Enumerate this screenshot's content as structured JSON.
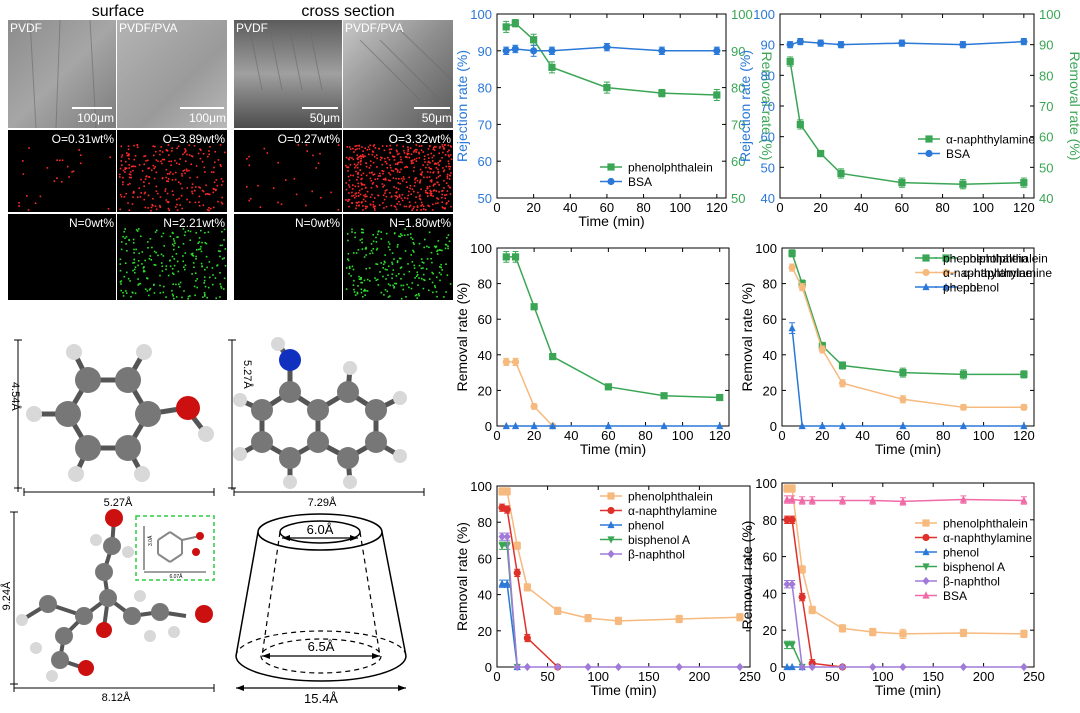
{
  "sem": {
    "col_titles": [
      "surface",
      "cross section"
    ],
    "panel_labels": [
      "PVDF",
      "PVDF/PVA",
      "PVDF",
      "PVDF/PVA"
    ],
    "scale_bars": [
      "100μm",
      "100μm",
      "50μm",
      "50μm"
    ],
    "oxygen": [
      "O=0.31wt%",
      "O=3.89wt%",
      "O=0.27wt%",
      "O=3.32wt%"
    ],
    "nitrogen": [
      "N=0wt%",
      "N=2.21wt%",
      "N=0wt%",
      "N=1.80wt%"
    ],
    "colors": {
      "oxygen_dots": "#ff2a2a",
      "nitrogen_dots": "#2ee02e",
      "sem_gray": "#9a9a9a"
    }
  },
  "molecules": {
    "phenol": {
      "height": "4.54Å",
      "width": "5.27Å"
    },
    "naphthylamine": {
      "height": "5.27Å",
      "width": "7.29Å"
    },
    "phenolphthalein": {
      "height": "9.24Å",
      "width": "8.12Å",
      "inset_a": "6.07Å",
      "inset_b": "3.0Å"
    },
    "cyclodextrin": {
      "top": "6.0Å",
      "bottom": "6.5Å",
      "width": "15.4Å"
    },
    "colors": {
      "carbon": "#7a7a7a",
      "hydrogen": "#d8d8d8",
      "oxygen": "#d01010",
      "nitrogen": "#1030c0"
    }
  },
  "chart_data": [
    {
      "type": "line",
      "xlabel": "Time (min)",
      "ylabel": "Rejection rate (%)",
      "ylabel_right": "Removal rate (%)",
      "xlim": [
        0,
        125
      ],
      "xticks": [
        0,
        20,
        40,
        60,
        80,
        100,
        120
      ],
      "ylim": [
        50,
        100
      ],
      "yticks": [
        50,
        60,
        70,
        80,
        90,
        100
      ],
      "ylim_right": [
        50,
        100
      ],
      "yticks_right": [
        50,
        60,
        70,
        80,
        90,
        100
      ],
      "legend": "bottom-right",
      "series": [
        {
          "name": "phenolphthalein",
          "axis": "right",
          "color": "#3aa655",
          "marker": "square",
          "x": [
            5,
            10,
            20,
            30,
            60,
            90,
            120
          ],
          "y": [
            96.5,
            97.5,
            93,
            85.5,
            80,
            78.5,
            78
          ],
          "err": [
            1.5,
            1,
            1.5,
            1.5,
            1.5,
            1,
            1.5
          ]
        },
        {
          "name": "BSA",
          "axis": "left",
          "color": "#2a78d8",
          "marker": "circle",
          "x": [
            5,
            10,
            20,
            30,
            60,
            90,
            120
          ],
          "y": [
            90,
            90.5,
            90,
            90,
            91,
            90,
            90
          ],
          "err": [
            1,
            1,
            1.5,
            1,
            1,
            1,
            1
          ]
        }
      ]
    },
    {
      "type": "line",
      "xlabel": "",
      "ylabel": "Rejection rate (%)",
      "ylabel_right": "Removal rate (%)",
      "xlim": [
        0,
        125
      ],
      "xticks": [
        0,
        20,
        40,
        60,
        80,
        100,
        120
      ],
      "ylim": [
        40,
        100
      ],
      "yticks": [
        40,
        50,
        60,
        70,
        80,
        90,
        100
      ],
      "ylim_right": [
        40,
        100
      ],
      "yticks_right": [
        40,
        50,
        60,
        70,
        80,
        90,
        100
      ],
      "legend": "right",
      "series": [
        {
          "name": "α-naphthylamine",
          "axis": "right",
          "color": "#3aa655",
          "marker": "square",
          "x": [
            5,
            10,
            20,
            30,
            60,
            90,
            120
          ],
          "y": [
            84.5,
            64,
            54.5,
            48,
            45,
            44.5,
            45
          ],
          "err": [
            1.5,
            1.5,
            1,
            1.5,
            1.5,
            1.5,
            1.5
          ]
        },
        {
          "name": "BSA",
          "axis": "left",
          "color": "#2a78d8",
          "marker": "circle",
          "x": [
            5,
            10,
            20,
            30,
            60,
            90,
            120
          ],
          "y": [
            90,
            91,
            90.5,
            90,
            90.5,
            90,
            91
          ],
          "err": [
            1,
            1,
            1,
            1,
            1,
            1,
            1
          ]
        }
      ]
    },
    {
      "type": "line",
      "xlabel": "Time (min)",
      "ylabel": "Removal rate (%)",
      "xlim": [
        0,
        125
      ],
      "xticks": [
        0,
        20,
        40,
        60,
        80,
        100,
        120
      ],
      "ylim": [
        0,
        100
      ],
      "yticks": [
        0,
        20,
        40,
        60,
        80,
        100
      ],
      "legend": "top-right",
      "series": [
        {
          "name": "phenolphthalein",
          "color": "#3aa655",
          "marker": "square",
          "x": [
            5,
            10,
            20,
            30,
            60,
            90,
            120
          ],
          "y": [
            95,
            95,
            67,
            39,
            22,
            17,
            16
          ],
          "err": [
            3,
            3,
            1.5,
            1.5,
            1.5,
            1.5,
            1.5
          ]
        },
        {
          "name": "α-naphthylamine",
          "color": "#f6b97e",
          "marker": "circle",
          "x": [
            5,
            10,
            20,
            30
          ],
          "y": [
            36,
            36,
            11,
            0
          ],
          "err": [
            2,
            2,
            1.5,
            0
          ]
        },
        {
          "name": "phenol",
          "color": "#2a78d8",
          "marker": "triangle",
          "x": [
            5,
            10,
            20,
            30,
            60,
            90,
            120
          ],
          "y": [
            0,
            0,
            0,
            0,
            0,
            0,
            0
          ],
          "err": [
            0,
            0,
            0,
            0,
            0,
            0,
            0
          ]
        }
      ]
    },
    {
      "type": "line",
      "xlabel": "Time (min)",
      "ylabel": "Removal rate (%)",
      "xlim": [
        0,
        125
      ],
      "xticks": [
        0,
        20,
        40,
        60,
        80,
        100,
        120
      ],
      "ylim": [
        0,
        100
      ],
      "yticks": [
        0,
        20,
        40,
        60,
        80,
        100
      ],
      "legend": "top-right",
      "series": [
        {
          "name": "phenolphthalein",
          "color": "#3aa655",
          "marker": "square",
          "x": [
            5,
            10,
            20,
            30,
            60,
            90,
            120
          ],
          "y": [
            97,
            80,
            45,
            34,
            30,
            29,
            29
          ],
          "err": [
            2,
            2,
            2,
            2,
            2.5,
            2.5,
            2
          ]
        },
        {
          "name": "α-naphthylamine",
          "color": "#f6b97e",
          "marker": "circle",
          "x": [
            5,
            10,
            20,
            30,
            60,
            90,
            120
          ],
          "y": [
            89,
            78,
            43,
            24,
            15,
            10.5,
            10.5
          ],
          "err": [
            2,
            2,
            2,
            2,
            2,
            1.5,
            1.5
          ]
        },
        {
          "name": "phenol",
          "color": "#2a78d8",
          "marker": "triangle",
          "x": [
            5,
            10,
            20,
            30,
            60,
            90,
            120
          ],
          "y": [
            55,
            0,
            0,
            0,
            0,
            0,
            0
          ],
          "err": [
            3,
            0,
            0,
            0,
            0,
            0,
            0
          ]
        }
      ]
    },
    {
      "type": "line",
      "xlabel": "Time (min)",
      "ylabel": "Removal rate (%)",
      "xlim": [
        0,
        250
      ],
      "xticks": [
        0,
        50,
        100,
        150,
        200,
        250
      ],
      "ylim": [
        0,
        100
      ],
      "yticks": [
        0,
        20,
        40,
        60,
        80,
        100
      ],
      "legend": "top-right",
      "series": [
        {
          "name": "phenolphthalein",
          "color": "#f6b97e",
          "marker": "square",
          "x": [
            5,
            10,
            20,
            30,
            60,
            90,
            120,
            180,
            240
          ],
          "y": [
            97,
            97,
            67,
            44,
            31,
            27,
            25.5,
            26.5,
            27.5
          ],
          "err": [
            2,
            2,
            2,
            2,
            2,
            2,
            2,
            2,
            2
          ]
        },
        {
          "name": "α-naphthylamine",
          "color": "#e0302a",
          "marker": "circle",
          "x": [
            5,
            10,
            20,
            30,
            60
          ],
          "y": [
            88,
            87,
            52,
            16,
            0
          ],
          "err": [
            2,
            2,
            2,
            2,
            0
          ]
        },
        {
          "name": "phenol",
          "color": "#2a78d8",
          "marker": "triangle",
          "x": [
            5,
            10,
            20
          ],
          "y": [
            46,
            46,
            0
          ],
          "err": [
            2,
            2,
            0
          ]
        },
        {
          "name": "bisphenol A",
          "color": "#3aa655",
          "marker": "triangle-down",
          "x": [
            5,
            10,
            20
          ],
          "y": [
            67,
            67,
            0
          ],
          "err": [
            2,
            2,
            0
          ]
        },
        {
          "name": "β-naphthol",
          "color": "#a07ad8",
          "marker": "diamond",
          "x": [
            5,
            10,
            20,
            30,
            60,
            90,
            120,
            180,
            240
          ],
          "y": [
            72,
            72,
            0,
            0,
            0,
            0,
            0,
            0,
            0
          ],
          "err": [
            2,
            2,
            0,
            0,
            0,
            0,
            0,
            0,
            0
          ]
        }
      ]
    },
    {
      "type": "line",
      "xlabel": "Time (min)",
      "ylabel": "Removal rate (%)",
      "xlim": [
        0,
        250
      ],
      "xticks": [
        0,
        50,
        100,
        150,
        200,
        250
      ],
      "ylim": [
        0,
        100
      ],
      "yticks": [
        0,
        20,
        40,
        60,
        80,
        100
      ],
      "legend": "right",
      "series": [
        {
          "name": "phenolphthalein",
          "color": "#f6b97e",
          "marker": "square",
          "x": [
            5,
            10,
            20,
            30,
            60,
            90,
            120,
            180,
            240
          ],
          "y": [
            97,
            97,
            53,
            31,
            21,
            19,
            18,
            18.5,
            18
          ],
          "err": [
            2,
            2,
            2,
            2,
            2,
            2,
            2.5,
            2,
            2
          ]
        },
        {
          "name": "α-naphthylamine",
          "color": "#e0302a",
          "marker": "circle",
          "x": [
            5,
            10,
            20,
            30,
            60
          ],
          "y": [
            80,
            80,
            38,
            2,
            0
          ],
          "err": [
            2,
            2,
            2,
            2,
            0
          ]
        },
        {
          "name": "phenol",
          "color": "#2a78d8",
          "marker": "triangle",
          "x": [
            5,
            10,
            20
          ],
          "y": [
            0,
            0,
            0
          ],
          "err": [
            0,
            0,
            0
          ]
        },
        {
          "name": "bisphenol A",
          "color": "#3aa655",
          "marker": "triangle-down",
          "x": [
            5,
            10,
            20
          ],
          "y": [
            12,
            12,
            0
          ],
          "err": [
            2,
            2,
            0
          ]
        },
        {
          "name": "β-naphthol",
          "color": "#a07ad8",
          "marker": "diamond",
          "x": [
            5,
            10,
            20,
            30,
            60,
            90,
            120,
            180,
            240
          ],
          "y": [
            45,
            45,
            0,
            0,
            0,
            0,
            0,
            0,
            0
          ],
          "err": [
            2,
            2,
            0,
            0,
            0,
            0,
            0,
            0,
            0
          ]
        },
        {
          "name": "BSA",
          "color": "#f06aa8",
          "marker": "triangle",
          "x": [
            5,
            10,
            20,
            30,
            60,
            90,
            120,
            180,
            240
          ],
          "y": [
            91,
            91,
            90.5,
            90.5,
            90.5,
            90.5,
            90,
            91,
            90.5
          ],
          "err": [
            2,
            2,
            2,
            2,
            2,
            2,
            2,
            2,
            2
          ]
        }
      ]
    }
  ]
}
